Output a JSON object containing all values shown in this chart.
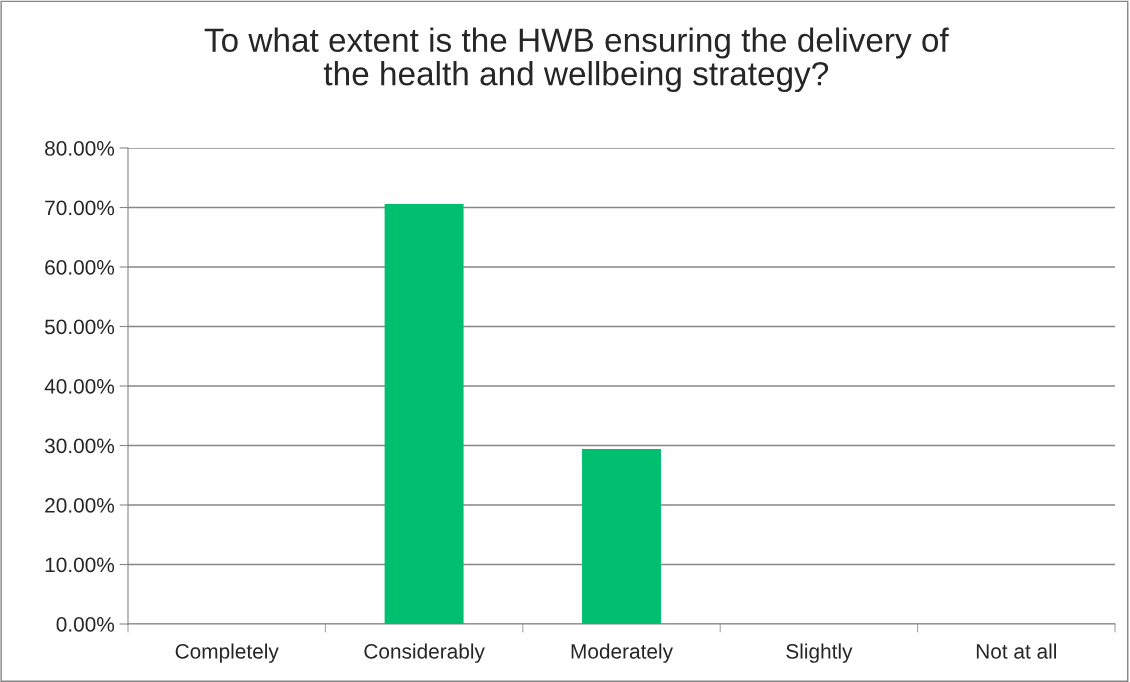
{
  "chart_data": {
    "type": "bar",
    "title": "To what extent is the HWB ensuring the delivery of\nthe health and wellbeing strategy?",
    "categories": [
      "Completely",
      "Considerably",
      "Moderately",
      "Slightly",
      "Not at all"
    ],
    "values": [
      0,
      70.6,
      29.4,
      0,
      0
    ],
    "color": "#00c070",
    "ylim": [
      0,
      80
    ],
    "yticks": [
      {
        "value": 0,
        "label": "0.00%"
      },
      {
        "value": 10,
        "label": "10.00%"
      },
      {
        "value": 20,
        "label": "20.00%"
      },
      {
        "value": 30,
        "label": "30.00%"
      },
      {
        "value": 40,
        "label": "40.00%"
      },
      {
        "value": 50,
        "label": "50.00%"
      },
      {
        "value": 60,
        "label": "60.00%"
      },
      {
        "value": 70,
        "label": "70.00%"
      },
      {
        "value": 80,
        "label": "80.00%"
      }
    ],
    "grid": "y",
    "legend": false
  }
}
